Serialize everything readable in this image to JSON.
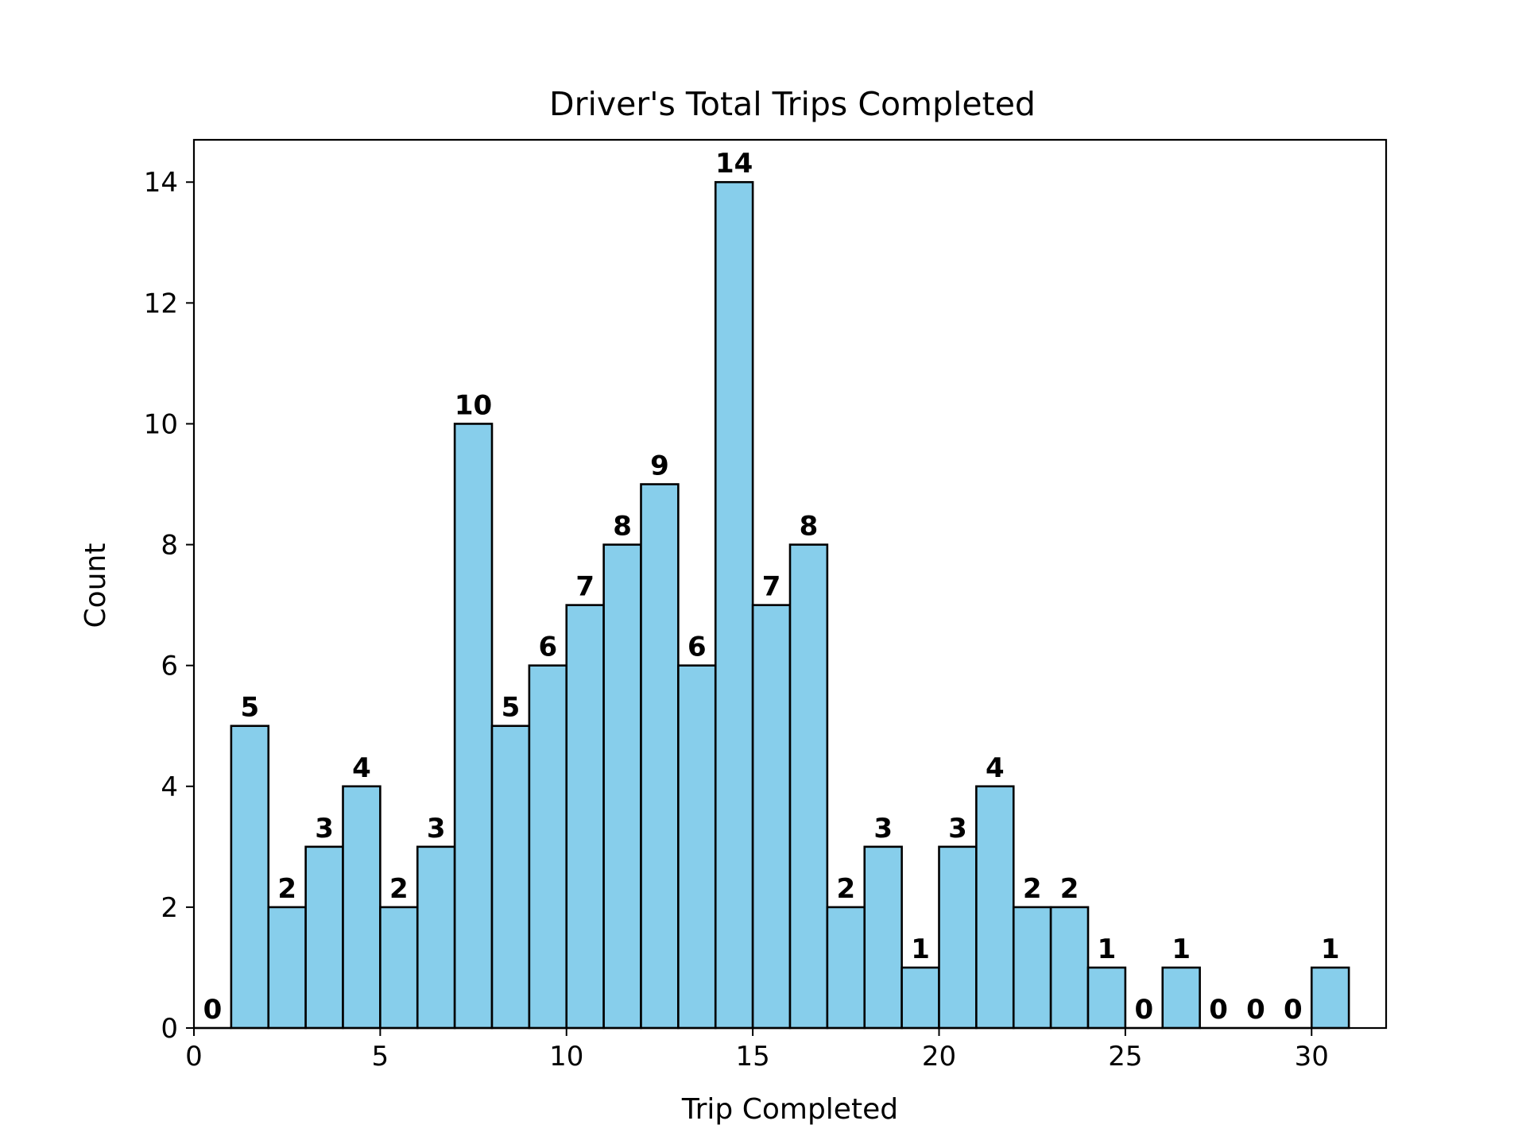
{
  "chart_data": {
    "type": "bar",
    "title": "Driver's Total Trips Completed",
    "xlabel": "Trip Completed",
    "ylabel": "Count",
    "bin_edges": [
      0,
      1,
      2,
      3,
      4,
      5,
      6,
      7,
      8,
      9,
      10,
      11,
      12,
      13,
      14,
      15,
      16,
      17,
      18,
      19,
      20,
      21,
      22,
      23,
      24,
      25,
      26,
      27,
      28,
      29,
      30,
      31
    ],
    "values": [
      0,
      5,
      2,
      3,
      4,
      2,
      3,
      10,
      5,
      6,
      7,
      8,
      9,
      6,
      14,
      7,
      8,
      2,
      3,
      1,
      3,
      4,
      2,
      2,
      1,
      0,
      1,
      0,
      0,
      0,
      1
    ],
    "data_labels": [
      "0",
      "5",
      "2",
      "3",
      "4",
      "2",
      "3",
      "10",
      "5",
      "6",
      "7",
      "8",
      "9",
      "6",
      "14",
      "7",
      "8",
      "2",
      "3",
      "1",
      "3",
      "4",
      "2",
      "2",
      "1",
      "0",
      "1",
      "0",
      "0",
      "0",
      "1"
    ],
    "xlim": [
      0,
      32
    ],
    "ylim": [
      0,
      14.7
    ],
    "xticks": [
      0,
      5,
      10,
      15,
      20,
      25,
      30
    ],
    "xtick_labels": [
      "0",
      "5",
      "10",
      "15",
      "20",
      "25",
      "30"
    ],
    "yticks": [
      0,
      2,
      4,
      6,
      8,
      10,
      12,
      14
    ],
    "ytick_labels": [
      "0",
      "2",
      "4",
      "6",
      "8",
      "10",
      "12",
      "14"
    ],
    "bar_color": "#87ceeb",
    "edge_color": "#000000",
    "grid": false,
    "legend": false
  }
}
